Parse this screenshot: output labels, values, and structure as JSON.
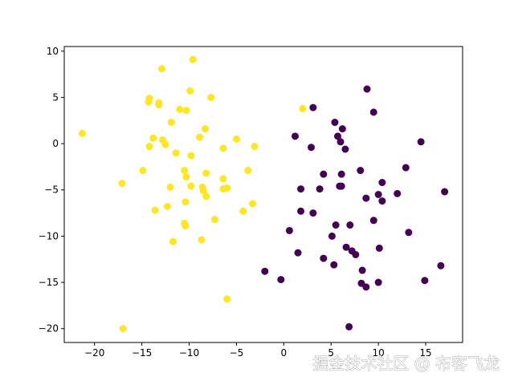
{
  "chart_data": {
    "type": "scatter",
    "watermark": "掘金技术社区 @ 布客飞龙",
    "xlim": [
      -23.2,
      18.9
    ],
    "ylim": [
      -21.5,
      10.5
    ],
    "xticks": [
      {
        "value": -20,
        "label": "−20"
      },
      {
        "value": -15,
        "label": "−15"
      },
      {
        "value": -10,
        "label": "−10"
      },
      {
        "value": -5,
        "label": "−5"
      },
      0,
      5,
      10,
      15
    ],
    "yticks": [
      {
        "value": -20,
        "label": "−20"
      },
      {
        "value": -15,
        "label": "−15"
      },
      {
        "value": -10,
        "label": "−10"
      },
      {
        "value": -5,
        "label": "−5"
      },
      0,
      5,
      10
    ],
    "series": [
      {
        "color": "#fde725",
        "x": [
          -21.3,
          -17.1,
          -17.0,
          -14.9,
          -14.3,
          -14.2,
          -14.2,
          -13.8,
          -13.6,
          -13.2,
          -13.2,
          -12.9,
          -12.8,
          -12.5,
          -12.3,
          -12.0,
          -11.9,
          -11.7,
          -11.4,
          -11.0,
          -10.5,
          -10.5,
          -10.4,
          -10.3,
          -10.3,
          -10.4,
          -9.9,
          -9.8,
          -9.8,
          -9.6,
          -8.9,
          -8.7,
          -8.6,
          -8.5,
          -8.3,
          -8.2,
          -8.2,
          -7.7,
          -7.3,
          -6.4,
          -6.4,
          -6.4,
          -6.0,
          -6.0,
          -5.0,
          -4.3,
          -3.8,
          -3.3,
          -3.1,
          2.0
        ],
        "values": [
          1.1,
          -4.3,
          -20.0,
          -2.9,
          4.5,
          4.9,
          -0.3,
          0.6,
          -7.2,
          4.2,
          4.4,
          8.1,
          0.4,
          -0.1,
          -6.8,
          -4.7,
          2.3,
          -10.6,
          -1.0,
          3.7,
          -2.9,
          -8.6,
          -8.9,
          3.6,
          -3.6,
          -6.3,
          5.7,
          -4.6,
          -1.3,
          9.1,
          0.7,
          -10.4,
          -4.7,
          -5.1,
          1.6,
          -3.2,
          -5.7,
          5.0,
          -8.2,
          -0.5,
          -3.8,
          -4.9,
          -4.8,
          -16.8,
          0.5,
          -7.3,
          -2.9,
          -6.5,
          -0.3,
          3.8
        ]
      },
      {
        "color": "#440154",
        "x": [
          3.1,
          8.8,
          9.5,
          5.4,
          6.2,
          5.7,
          1.2,
          6.0,
          2.9,
          6.5,
          14.5,
          8.1,
          12.9,
          4.2,
          6.1,
          10.4,
          5.9,
          6.1,
          1.8,
          3.8,
          10.0,
          12.0,
          17.0,
          8.7,
          10.4,
          1.8,
          3.1,
          5.5,
          7.0,
          9.5,
          0.6,
          5.1,
          13.2,
          10.1,
          6.6,
          7.2,
          7.6,
          1.5,
          4.2,
          5.3,
          8.3,
          16.6,
          -2.0,
          -0.3,
          8.2,
          10.0,
          14.9,
          8.7,
          6.9
        ],
        "values": [
          3.9,
          5.9,
          3.4,
          2.3,
          1.6,
          0.8,
          0.8,
          0.2,
          -0.4,
          -0.6,
          0.2,
          -2.9,
          -2.6,
          -3.3,
          -3.3,
          -4.2,
          -4.6,
          -4.6,
          -4.9,
          -4.9,
          -5.5,
          -5.4,
          -5.2,
          -5.9,
          -6.2,
          -7.3,
          -7.5,
          -8.8,
          -8.8,
          -8.3,
          -9.4,
          -10.0,
          -9.6,
          -11.3,
          -11.2,
          -11.6,
          -12.0,
          -11.8,
          -12.4,
          -13.1,
          -13.7,
          -13.2,
          -13.8,
          -14.7,
          -15.1,
          -15.0,
          -14.8,
          -15.5,
          -19.8
        ]
      }
    ]
  }
}
